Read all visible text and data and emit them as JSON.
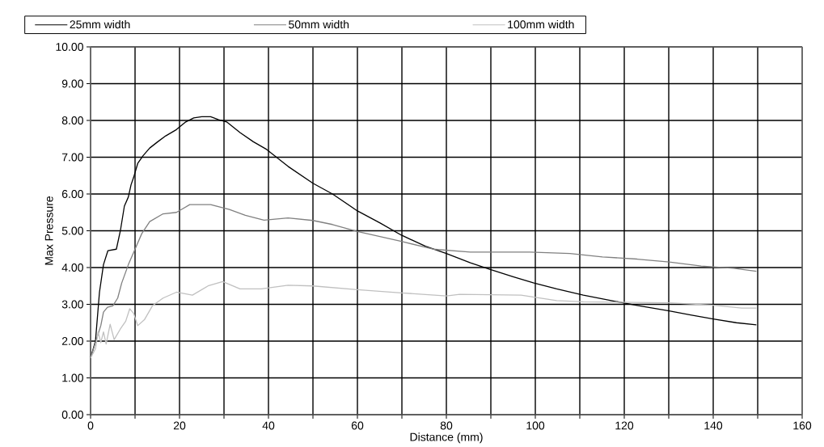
{
  "chart_data": {
    "type": "line",
    "xlabel": "Distance (mm)",
    "ylabel": "Max Pressure",
    "xlim": [
      0,
      160
    ],
    "ylim": [
      0,
      10
    ],
    "xticks": [
      0,
      {
        "value": 10,
        "label": null
      },
      20,
      {
        "value": 30,
        "label": null
      },
      40,
      {
        "value": 50,
        "label": null
      },
      60,
      {
        "value": 70,
        "label": null
      },
      80,
      {
        "value": 90,
        "label": null
      },
      100,
      {
        "value": 110,
        "label": null
      },
      120,
      {
        "value": 130,
        "label": null
      },
      140,
      {
        "value": 150,
        "label": null
      },
      160
    ],
    "yticks": [
      {
        "value": 0,
        "label": "0.00"
      },
      {
        "value": 1,
        "label": "1.00"
      },
      {
        "value": 2,
        "label": "2.00"
      },
      {
        "value": 3,
        "label": "3.00"
      },
      {
        "value": 4,
        "label": "4.00"
      },
      {
        "value": 5,
        "label": "5.00"
      },
      {
        "value": 6,
        "label": "6.00"
      },
      {
        "value": 7,
        "label": "7.00"
      },
      {
        "value": 8,
        "label": "8.00"
      },
      {
        "value": 9,
        "label": "9.00"
      },
      {
        "value": 10,
        "label": "10.00"
      }
    ],
    "grid": true,
    "legend": "top",
    "marker": "none",
    "line_style": "solid",
    "series": [
      {
        "name": "25mm width",
        "color": "#000000",
        "x": [
          0,
          1.1,
          2.0,
          2.9,
          3.9,
          5.8,
          6.7,
          7.6,
          8.5,
          9.1,
          9.7,
          10.6,
          11.8,
          13.3,
          15.1,
          16.9,
          19.3,
          21.4,
          23.2,
          25.0,
          27.0,
          28.8,
          30.6,
          33.6,
          36.6,
          39.6,
          44.4,
          50,
          54.4,
          60,
          65.1,
          69.9,
          75.3,
          80,
          85.4,
          89.6,
          95,
          99.7,
          104.8,
          110.8,
          118,
          122.9,
          130.1,
          134.9,
          140,
          145.2,
          149.7
        ],
        "values": [
          1.54,
          2.0,
          3.33,
          4.08,
          4.46,
          4.5,
          5.0,
          5.67,
          5.92,
          6.25,
          6.46,
          6.83,
          7.04,
          7.25,
          7.42,
          7.58,
          7.75,
          7.96,
          8.07,
          8.1,
          8.1,
          8.02,
          7.96,
          7.67,
          7.42,
          7.21,
          6.75,
          6.29,
          6.0,
          5.54,
          5.21,
          4.88,
          4.58,
          4.38,
          4.13,
          3.96,
          3.75,
          3.58,
          3.42,
          3.25,
          3.08,
          2.97,
          2.82,
          2.71,
          2.6,
          2.5,
          2.44
        ]
      },
      {
        "name": "50mm width",
        "color": "#808080",
        "x": [
          0,
          1.4,
          2.3,
          2.9,
          3.8,
          5.0,
          6.1,
          7.0,
          8.5,
          10,
          11.5,
          13.3,
          16.3,
          19.3,
          22.3,
          27,
          31.2,
          34.8,
          39,
          44.4,
          50,
          54.4,
          60,
          69.9,
          77,
          85.4,
          98.8,
          107.8,
          115.1,
          122.9,
          130.1,
          137.3,
          144.6,
          149.7
        ],
        "values": [
          1.54,
          2.08,
          2.42,
          2.79,
          2.92,
          2.96,
          3.17,
          3.58,
          4.08,
          4.5,
          4.92,
          5.25,
          5.46,
          5.5,
          5.71,
          5.71,
          5.58,
          5.42,
          5.29,
          5.35,
          5.28,
          5.17,
          4.98,
          4.71,
          4.5,
          4.42,
          4.42,
          4.38,
          4.29,
          4.23,
          4.15,
          4.04,
          3.98,
          3.9
        ]
      },
      {
        "name": "100mm width",
        "color": "#c0c0c0",
        "x": [
          0,
          1.1,
          1.7,
          2.3,
          2.9,
          3.5,
          4.4,
          5.3,
          6.7,
          7.9,
          8.8,
          9.7,
          10.6,
          12.1,
          13.9,
          16.3,
          19.3,
          22.9,
          26.4,
          29.7,
          33.6,
          38.4,
          44.4,
          50,
          60,
          69.9,
          80,
          83,
          96.8,
          104.8,
          110.8,
          130.1,
          139.6,
          146.4,
          149.7
        ],
        "values": [
          1.54,
          1.79,
          2.25,
          1.96,
          2.25,
          1.92,
          2.46,
          2.04,
          2.33,
          2.54,
          2.88,
          2.75,
          2.42,
          2.58,
          2.96,
          3.17,
          3.33,
          3.25,
          3.5,
          3.62,
          3.42,
          3.42,
          3.52,
          3.5,
          3.4,
          3.31,
          3.23,
          3.27,
          3.25,
          3.1,
          3.07,
          3.04,
          2.98,
          2.9,
          2.9
        ]
      }
    ]
  }
}
